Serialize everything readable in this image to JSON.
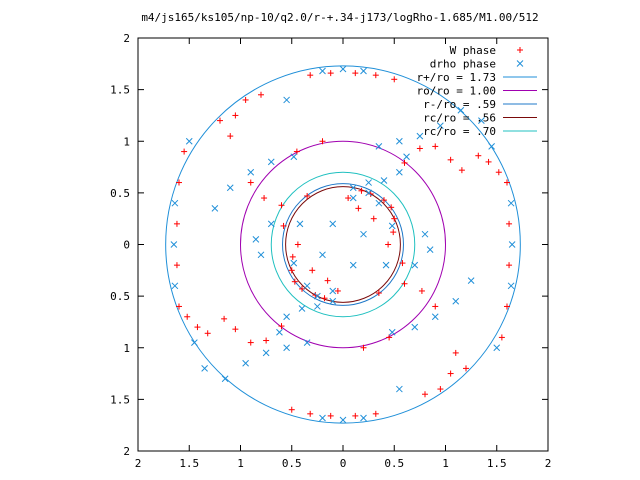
{
  "chart_data": {
    "type": "scatter",
    "title": "m4/js165/ks105/np-10/q2.0/r-+.34-j173/logRho-1.685/M1.00/512",
    "xlabel": "",
    "ylabel": "",
    "xlim": [
      -2,
      2
    ],
    "ylim": [
      -2,
      2
    ],
    "x_ticks": [
      -2,
      -1.5,
      -1,
      -0.5,
      0,
      0.5,
      1,
      1.5,
      2
    ],
    "y_ticks": [
      -2,
      -1.5,
      -1,
      -0.5,
      0,
      0.5,
      1,
      1.5,
      2
    ],
    "x_tick_labels": [
      "2",
      "1.5",
      "1",
      "0.5",
      "0",
      "0.5",
      "1",
      "1.5",
      "2"
    ],
    "y_tick_labels": [
      "2",
      "1.5",
      "1",
      "0.5",
      "0",
      "0.5",
      "1",
      "1.5",
      "2"
    ],
    "grid": false,
    "legend_position": "top-right",
    "series": [
      {
        "name": "W phase",
        "marker": "plus",
        "color": "#ff0000",
        "points": [
          [
            0.4,
            0.43
          ],
          [
            0.47,
            0.36
          ],
          [
            0.5,
            0.25
          ],
          [
            0.49,
            0.12
          ],
          [
            0.44,
            0.0
          ],
          [
            -0.4,
            -0.43
          ],
          [
            -0.47,
            -0.36
          ],
          [
            -0.5,
            -0.25
          ],
          [
            -0.49,
            -0.12
          ],
          [
            -0.44,
            0.0
          ],
          [
            0.18,
            0.52
          ],
          [
            0.27,
            0.49
          ],
          [
            0.6,
            0.79
          ],
          [
            0.75,
            0.93
          ],
          [
            0.9,
            0.95
          ],
          [
            1.05,
            0.82
          ],
          [
            1.16,
            0.72
          ],
          [
            1.32,
            0.86
          ],
          [
            1.42,
            0.8
          ],
          [
            1.52,
            0.7
          ],
          [
            -0.18,
            -0.52
          ],
          [
            -0.27,
            -0.49
          ],
          [
            -0.6,
            -0.79
          ],
          [
            -0.75,
            -0.93
          ],
          [
            -0.9,
            -0.95
          ],
          [
            -1.05,
            -0.82
          ],
          [
            -1.16,
            -0.72
          ],
          [
            -1.32,
            -0.86
          ],
          [
            -1.42,
            -0.8
          ],
          [
            -1.52,
            -0.7
          ],
          [
            -0.05,
            -0.45
          ],
          [
            0.35,
            -0.47
          ],
          [
            0.6,
            -0.38
          ],
          [
            0.77,
            -0.45
          ],
          [
            0.9,
            -0.6
          ],
          [
            0.05,
            0.45
          ],
          [
            -0.35,
            0.47
          ],
          [
            -0.6,
            0.38
          ],
          [
            -0.77,
            0.45
          ],
          [
            -0.9,
            0.6
          ],
          [
            -0.32,
            1.64
          ],
          [
            -0.12,
            1.66
          ],
          [
            0.12,
            1.66
          ],
          [
            0.32,
            1.64
          ],
          [
            0.5,
            1.6
          ],
          [
            0.32,
            -1.64
          ],
          [
            0.12,
            -1.66
          ],
          [
            -0.12,
            -1.66
          ],
          [
            -0.32,
            -1.64
          ],
          [
            -0.5,
            -1.6
          ],
          [
            -1.55,
            0.9
          ],
          [
            -1.6,
            0.6
          ],
          [
            -1.62,
            0.2
          ],
          [
            -1.62,
            -0.2
          ],
          [
            -1.6,
            -0.6
          ],
          [
            1.55,
            -0.9
          ],
          [
            1.6,
            -0.6
          ],
          [
            1.62,
            -0.2
          ],
          [
            1.62,
            0.2
          ],
          [
            1.6,
            0.6
          ],
          [
            -1.1,
            1.05
          ],
          [
            -1.05,
            1.25
          ],
          [
            -0.95,
            1.4
          ],
          [
            1.1,
            -1.05
          ],
          [
            1.05,
            -1.25
          ],
          [
            0.95,
            -1.4
          ],
          [
            1.2,
            -1.2
          ],
          [
            -1.2,
            1.2
          ],
          [
            0.8,
            -1.45
          ],
          [
            -0.8,
            1.45
          ],
          [
            0.45,
            -0.9
          ],
          [
            0.2,
            -1.0
          ],
          [
            -0.45,
            0.9
          ],
          [
            -0.2,
            1.0
          ],
          [
            0.58,
            -0.18
          ],
          [
            -0.58,
            0.18
          ],
          [
            0.3,
            0.25
          ],
          [
            -0.3,
            -0.25
          ],
          [
            0.15,
            0.35
          ],
          [
            -0.15,
            -0.35
          ]
        ]
      },
      {
        "name": "drho phase",
        "marker": "cross",
        "color": "#1f8fd8",
        "points": [
          [
            0.1,
            0.55
          ],
          [
            0.25,
            0.6
          ],
          [
            0.4,
            0.62
          ],
          [
            0.55,
            0.7
          ],
          [
            0.62,
            0.85
          ],
          [
            -0.1,
            -0.55
          ],
          [
            -0.25,
            -0.6
          ],
          [
            -0.4,
            -0.62
          ],
          [
            -0.55,
            -0.7
          ],
          [
            -0.62,
            -0.85
          ],
          [
            0.35,
            0.95
          ],
          [
            0.55,
            1.0
          ],
          [
            0.75,
            1.05
          ],
          [
            0.95,
            1.15
          ],
          [
            1.15,
            1.3
          ],
          [
            -0.35,
            -0.95
          ],
          [
            -0.55,
            -1.0
          ],
          [
            -0.75,
            -1.05
          ],
          [
            -0.95,
            -1.15
          ],
          [
            -1.15,
            -1.3
          ],
          [
            -0.48,
            0.85
          ],
          [
            -0.7,
            0.8
          ],
          [
            -0.9,
            0.7
          ],
          [
            -1.1,
            0.55
          ],
          [
            -1.25,
            0.35
          ],
          [
            0.48,
            -0.85
          ],
          [
            0.7,
            -0.8
          ],
          [
            0.9,
            -0.7
          ],
          [
            1.1,
            -0.55
          ],
          [
            1.25,
            -0.35
          ],
          [
            0.8,
            0.1
          ],
          [
            0.85,
            -0.05
          ],
          [
            0.7,
            -0.2
          ],
          [
            -0.8,
            -0.1
          ],
          [
            -0.85,
            0.05
          ],
          [
            -0.7,
            0.2
          ],
          [
            0.2,
            0.1
          ],
          [
            -0.2,
            -0.1
          ],
          [
            0.1,
            -0.2
          ],
          [
            -0.1,
            0.2
          ],
          [
            -0.2,
            1.68
          ],
          [
            0.0,
            1.7
          ],
          [
            0.2,
            1.68
          ],
          [
            0.2,
            -1.68
          ],
          [
            0.0,
            -1.7
          ],
          [
            -0.2,
            -1.68
          ],
          [
            -1.64,
            0.4
          ],
          [
            -1.65,
            0.0
          ],
          [
            -1.64,
            -0.4
          ],
          [
            1.64,
            -0.4
          ],
          [
            1.65,
            0.0
          ],
          [
            1.64,
            0.4
          ],
          [
            -1.5,
            1.0
          ],
          [
            1.5,
            -1.0
          ],
          [
            -1.35,
            -1.2
          ],
          [
            1.35,
            1.2
          ],
          [
            -0.55,
            1.4
          ],
          [
            0.55,
            -1.4
          ],
          [
            -1.45,
            -0.95
          ],
          [
            1.45,
            0.95
          ],
          [
            0.35,
            0.4
          ],
          [
            -0.35,
            -0.4
          ],
          [
            0.48,
            0.18
          ],
          [
            -0.48,
            -0.18
          ],
          [
            0.25,
            0.5
          ],
          [
            -0.25,
            -0.5
          ],
          [
            0.1,
            0.45
          ],
          [
            -0.1,
            -0.45
          ],
          [
            0.42,
            -0.2
          ],
          [
            -0.42,
            0.2
          ]
        ]
      }
    ],
    "circles": [
      {
        "name": "r+/ro = 1.73",
        "r": 1.73,
        "color": "#1f8fd8"
      },
      {
        "name": "ro/ro = 1.00",
        "r": 1.0,
        "color": "#a000b0"
      },
      {
        "name": "r-/ro = .59",
        "r": 0.59,
        "color": "#1f78c8"
      },
      {
        "name": "rc/ro = .56",
        "r": 0.56,
        "color": "#7a0a0a"
      },
      {
        "name": "rc/ro = .70",
        "r": 0.7,
        "color": "#20c0c0"
      }
    ],
    "legend": [
      {
        "label": "W phase",
        "kind": "marker",
        "marker": "plus",
        "color": "#ff0000"
      },
      {
        "label": "drho phase",
        "kind": "marker",
        "marker": "cross",
        "color": "#1f8fd8"
      },
      {
        "label": "r+/ro = 1.73",
        "kind": "line",
        "color": "#1f8fd8"
      },
      {
        "label": "ro/ro = 1.00",
        "kind": "line",
        "color": "#a000b0"
      },
      {
        "label": "r-/ro = .59",
        "kind": "line",
        "color": "#1f78c8"
      },
      {
        "label": "rc/ro = .56",
        "kind": "line",
        "color": "#7a0a0a"
      },
      {
        "label": "rc/ro = .70",
        "kind": "line",
        "color": "#20c0c0"
      }
    ]
  }
}
